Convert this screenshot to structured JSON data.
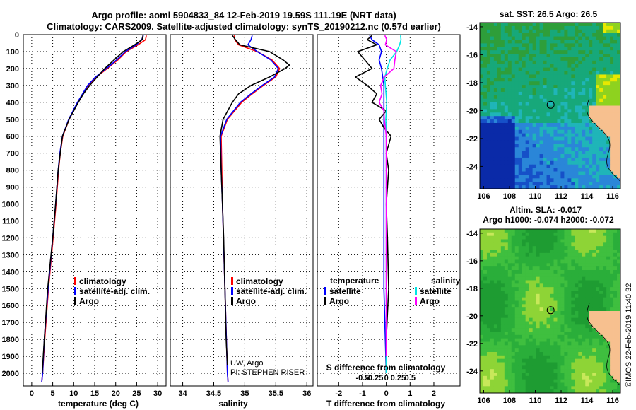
{
  "header": {
    "line1": "Argo profile: aoml 5904833_84 12-Feb-2019 19.59S 111.19E (NRT data)",
    "line2": "Climatology: CARS2009. Satellite-adjusted climatology: synTS_20190212.nc (0.57d earlier)"
  },
  "colors": {
    "climatology": "#ff0000",
    "satellite": "#0000ff",
    "argo": "#000000",
    "sat_salinity": "#00e5e5",
    "argo_salinity": "#ff00ff",
    "land": "#f7c08f"
  },
  "depth_axis": {
    "ticks": [
      0,
      100,
      200,
      300,
      400,
      500,
      600,
      700,
      800,
      900,
      1000,
      1100,
      1200,
      1300,
      1400,
      1500,
      1600,
      1700,
      1800,
      1900,
      2000
    ],
    "range": [
      0,
      2075
    ]
  },
  "legend_temp": {
    "climatology": "climatology",
    "satellite": "satellite-adj. clim.",
    "argo": "Argo"
  },
  "legend_sal": {
    "climatology": "climatology",
    "satellite": "satellite-adj. clim.",
    "argo": "Argo"
  },
  "legend_diff": {
    "temp_title": "temperature",
    "sal_title": "salinity",
    "satellite": "satellite",
    "argo": "Argo"
  },
  "credit": {
    "line1": "UW, Argo",
    "line2": "PI: STEPHEN RISER"
  },
  "map_top": {
    "title": "sat. SST: 26.5 Argo: 26.5",
    "xticks": [
      "106",
      "108",
      "110",
      "112",
      "114",
      "116"
    ],
    "yticks": [
      "-14",
      "-16",
      "-18",
      "-20",
      "-22",
      "-24"
    ]
  },
  "map_bottom": {
    "title1": "Altim. SLA: -0.017",
    "title2": "Argo h1000: -0.074 h2000: -0.072",
    "xticks": [
      "106",
      "108",
      "110",
      "112",
      "114",
      "116"
    ],
    "yticks": [
      "-14",
      "-16",
      "-18",
      "-20",
      "-22",
      "-24"
    ]
  },
  "watermark": "©IMOS 22-Feb-2019 11:40:32",
  "chart_data": [
    {
      "type": "line",
      "xlabel": "temperature (deg C)",
      "ylabel": "depth",
      "xlim": [
        -2,
        32
      ],
      "xticks": [
        0,
        5,
        10,
        15,
        20,
        25,
        30
      ],
      "ylim": [
        2075,
        0
      ],
      "series": [
        {
          "name": "climatology",
          "color": "red",
          "depth": [
            5,
            30,
            60,
            100,
            150,
            200,
            250,
            300,
            350,
            400,
            500,
            600,
            700,
            800,
            1000,
            1200,
            1500,
            1800,
            2000,
            2050
          ],
          "values": [
            27.3,
            27.1,
            25.3,
            22.5,
            20.5,
            18.0,
            15.4,
            13.4,
            12.2,
            11.0,
            8.9,
            7.4,
            6.8,
            6.4,
            5.8,
            5.1,
            4.0,
            3.1,
            2.6,
            2.4
          ]
        },
        {
          "name": "satellite-adj. clim.",
          "color": "blue",
          "depth": [
            5,
            30,
            60,
            100,
            150,
            200,
            250,
            300,
            350,
            400,
            500,
            600,
            700,
            800,
            1000,
            1200,
            1500,
            1800,
            2000,
            2050
          ],
          "values": [
            26.6,
            26.2,
            24.9,
            22.3,
            20.2,
            17.8,
            15.2,
            13.3,
            12.1,
            10.9,
            8.8,
            7.3,
            6.7,
            6.3,
            5.7,
            5.0,
            3.9,
            3.0,
            2.6,
            2.4
          ]
        },
        {
          "name": "Argo",
          "color": "black",
          "depth": [
            5,
            30,
            60,
            100,
            150,
            200,
            250,
            300,
            350,
            400,
            500,
            600,
            700,
            800,
            1000,
            1200,
            1500,
            1800,
            2000
          ],
          "values": [
            26.5,
            26.3,
            24.5,
            21.8,
            19.6,
            17.4,
            15.6,
            13.8,
            12.3,
            11.1,
            8.9,
            7.3,
            6.8,
            6.3,
            5.7,
            5.0,
            3.8,
            3.0,
            2.5
          ]
        }
      ]
    },
    {
      "type": "line",
      "xlabel": "salinity",
      "ylabel": "depth",
      "xlim": [
        33.8,
        36.1
      ],
      "xticks": [
        34,
        34.5,
        35,
        35.5,
        36
      ],
      "ylim": [
        2075,
        0
      ],
      "series": [
        {
          "name": "climatology",
          "color": "red",
          "depth": [
            5,
            30,
            60,
            100,
            150,
            200,
            250,
            300,
            350,
            400,
            500,
            600,
            800,
            1000,
            1500,
            2000,
            2050
          ],
          "values": [
            34.83,
            34.84,
            34.9,
            35.2,
            35.44,
            35.56,
            35.5,
            35.3,
            35.12,
            34.95,
            34.72,
            34.62,
            34.63,
            34.64,
            34.68,
            34.72,
            34.73
          ]
        },
        {
          "name": "satellite-adj. clim.",
          "color": "blue",
          "depth": [
            5,
            30,
            60,
            100,
            150,
            200,
            250,
            300,
            350,
            400,
            500,
            600,
            800,
            1000,
            1500,
            2000,
            2050
          ],
          "values": [
            35.12,
            35.1,
            35.05,
            35.2,
            35.42,
            35.54,
            35.48,
            35.28,
            35.1,
            34.93,
            34.71,
            34.61,
            34.62,
            34.64,
            34.68,
            34.72,
            34.73
          ]
        },
        {
          "name": "Argo",
          "color": "black",
          "depth": [
            5,
            30,
            60,
            100,
            150,
            180,
            200,
            250,
            300,
            350,
            400,
            500,
            600,
            800,
            1000,
            1200,
            1500,
            1800,
            1950
          ],
          "values": [
            34.8,
            34.85,
            34.92,
            35.4,
            35.62,
            35.72,
            35.65,
            35.4,
            35.1,
            34.9,
            34.8,
            34.65,
            34.6,
            34.62,
            34.64,
            34.66,
            34.68,
            34.7,
            34.72
          ]
        }
      ]
    },
    {
      "type": "line",
      "xlabel": "T difference from climatology",
      "x2label": "S difference from climatology",
      "ylabel": "depth",
      "xlim": [
        -2.9,
        3.1
      ],
      "xticks": [
        -2,
        -1,
        0,
        1,
        2
      ],
      "x2ticks": [
        -0.5,
        -0.25,
        0,
        0.25,
        0.5
      ],
      "x2tick_labels": [
        "-0.5",
        "-0.25",
        "0",
        "0.25",
        "0.5"
      ],
      "ylim": [
        2075,
        0
      ],
      "series": [
        {
          "name": "T satellite",
          "color": "blue",
          "depth": [
            5,
            30,
            60,
            100,
            150,
            200,
            300,
            400,
            500,
            600,
            800,
            1000,
            1500,
            2000
          ],
          "values": [
            -0.7,
            -0.6,
            -0.3,
            -0.2,
            -0.3,
            -0.2,
            -0.1,
            -0.1,
            -0.1,
            -0.1,
            -0.1,
            -0.1,
            -0.1,
            0
          ]
        },
        {
          "name": "T Argo",
          "color": "black",
          "depth": [
            5,
            30,
            60,
            100,
            150,
            200,
            250,
            300,
            350,
            400,
            450,
            500,
            550,
            600,
            700,
            800,
            1000,
            1200,
            1500,
            1800,
            2000
          ],
          "values": [
            -0.6,
            -0.8,
            -0.4,
            -1.2,
            -0.9,
            -0.6,
            -1.3,
            -0.8,
            -0.4,
            -0.6,
            0,
            -0.3,
            -0.1,
            0.2,
            0,
            0.1,
            0,
            0.05,
            0.1,
            0,
            0
          ]
        },
        {
          "name": "S satellite",
          "color": "cyan",
          "depth": [
            5,
            30,
            60,
            100,
            150,
            200,
            250,
            300,
            400,
            500,
            600,
            800,
            1000,
            1500,
            2000
          ],
          "values": [
            0.3,
            0.31,
            0.28,
            0.22,
            0.08,
            0.02,
            -0.03,
            -0.02,
            0.01,
            -0.01,
            0,
            0,
            0,
            0,
            0
          ]
        },
        {
          "name": "S Argo",
          "color": "magenta",
          "depth": [
            5,
            30,
            60,
            100,
            150,
            200,
            250,
            300,
            350,
            400,
            450,
            500,
            550,
            600,
            700,
            800,
            1000,
            1500,
            1900
          ],
          "values": [
            -0.03,
            0.01,
            -0.02,
            0.21,
            0.18,
            0.16,
            -0.04,
            -0.12,
            -0.09,
            -0.15,
            -0.05,
            -0.04,
            -0.02,
            0,
            0,
            0,
            0,
            0,
            0
          ]
        }
      ]
    }
  ]
}
